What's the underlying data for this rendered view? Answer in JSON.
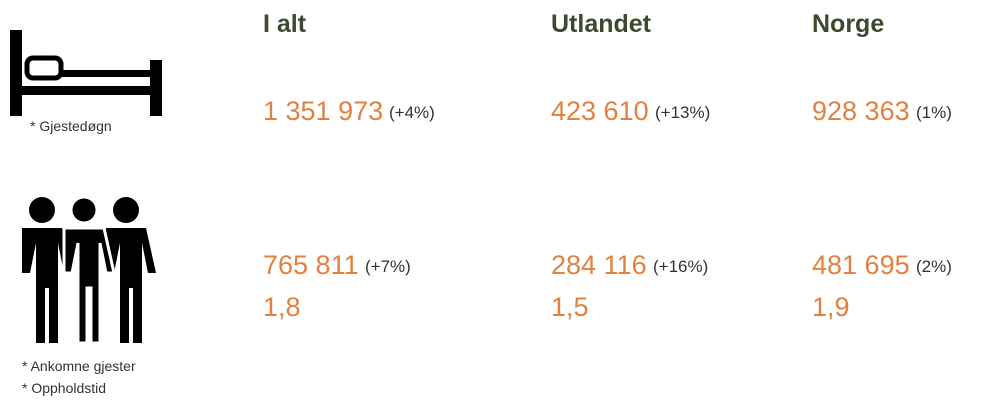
{
  "columns": [
    "I alt",
    "Utlandet",
    "Norge"
  ],
  "rows": [
    {
      "notes": [
        "* Gjestedøgn"
      ],
      "cells": [
        {
          "value": "1 351 973",
          "change": "(+4%)"
        },
        {
          "value": "423 610",
          "change": "(+13%)"
        },
        {
          "value": "928 363",
          "change": "(1%)"
        }
      ]
    },
    {
      "notes": [
        "* Ankomne gjester",
        "* Oppholdstid"
      ],
      "cells": [
        {
          "value": "765 811",
          "change": "(+7%)",
          "second": "1,8"
        },
        {
          "value": "284 116",
          "change": "(+16%)",
          "second": "1,5"
        },
        {
          "value": "481 695",
          "change": "(2%)",
          "second": "1,9"
        }
      ]
    }
  ]
}
